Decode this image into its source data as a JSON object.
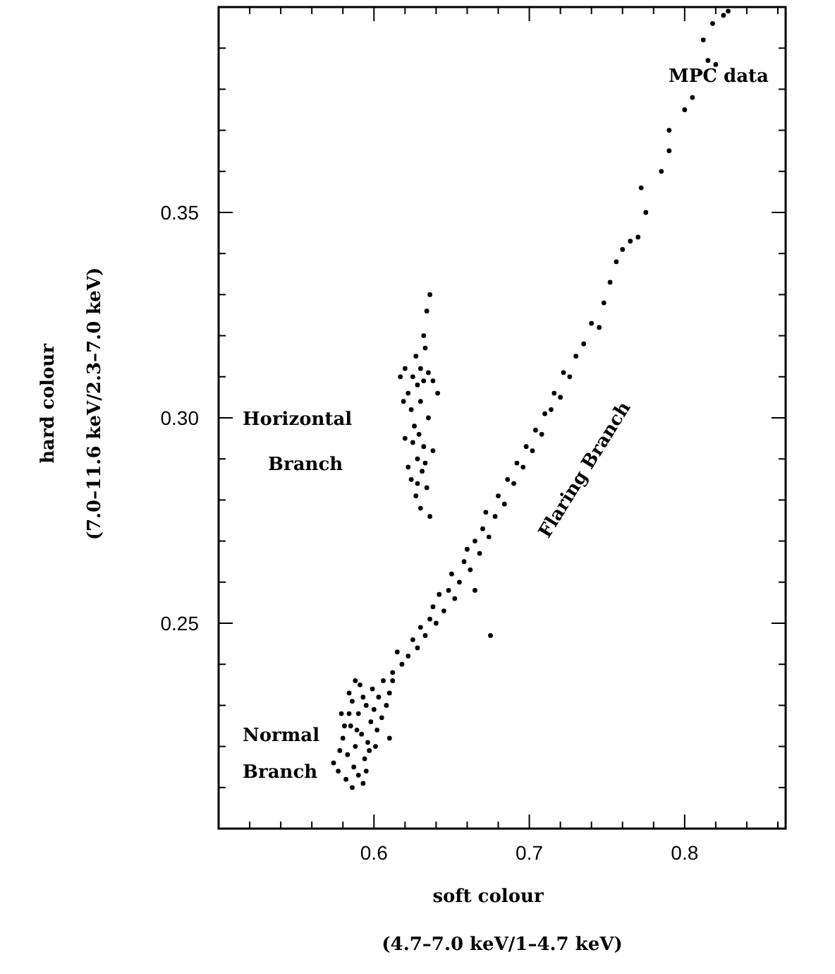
{
  "chart_data": {
    "type": "scatter",
    "xlabel": "soft colour\n(4.7–7.0 keV/1–4.7 keV)",
    "ylabel": "hard colour\n(7.0–11.6 keV/2.3–7.0 keV)",
    "xlim": [
      0.5,
      0.865
    ],
    "ylim": [
      0.2,
      0.4
    ],
    "xticks": [
      {
        "value": 0.52,
        "label": null
      },
      {
        "value": 0.54,
        "label": null
      },
      {
        "value": 0.56,
        "label": null
      },
      {
        "value": 0.58,
        "label": null
      },
      0.6,
      {
        "value": 0.62,
        "label": null
      },
      {
        "value": 0.64,
        "label": null
      },
      {
        "value": 0.66,
        "label": null
      },
      {
        "value": 0.68,
        "label": null
      },
      0.7,
      {
        "value": 0.72,
        "label": null
      },
      {
        "value": 0.74,
        "label": null
      },
      {
        "value": 0.76,
        "label": null
      },
      {
        "value": 0.78,
        "label": null
      },
      0.8,
      {
        "value": 0.82,
        "label": null
      },
      {
        "value": 0.84,
        "label": null
      },
      {
        "value": 0.86,
        "label": null
      }
    ],
    "yticks": [
      {
        "value": 0.21,
        "label": null
      },
      {
        "value": 0.22,
        "label": null
      },
      {
        "value": 0.23,
        "label": null
      },
      {
        "value": 0.24,
        "label": null
      },
      0.25,
      {
        "value": 0.26,
        "label": null
      },
      {
        "value": 0.27,
        "label": null
      },
      {
        "value": 0.28,
        "label": null
      },
      {
        "value": 0.29,
        "label": null
      },
      {
        "value": 0.3,
        "label": "0.30"
      },
      {
        "value": 0.31,
        "label": null
      },
      {
        "value": 0.32,
        "label": null
      },
      {
        "value": 0.33,
        "label": null
      },
      {
        "value": 0.34,
        "label": null
      },
      0.35,
      {
        "value": 0.36,
        "label": null
      },
      {
        "value": 0.37,
        "label": null
      },
      {
        "value": 0.38,
        "label": null
      },
      {
        "value": 0.39,
        "label": null
      }
    ],
    "grid": false,
    "marker": "circle",
    "annotations": [
      "MPC data",
      "Horizontal Branch",
      "Normal Branch",
      "Flaring Branch"
    ],
    "series": [
      {
        "color": "#000000",
        "x": [
          0.585,
          0.59,
          0.588,
          0.592,
          0.583,
          0.595,
          0.58,
          0.587,
          0.593,
          0.598,
          0.578,
          0.59,
          0.596,
          0.6,
          0.584,
          0.589,
          0.586,
          0.603,
          0.605,
          0.582,
          0.577,
          0.594,
          0.591,
          0.599,
          0.608,
          0.574,
          0.597,
          0.581,
          0.602,
          0.61,
          0.588,
          0.593,
          0.586,
          0.606,
          0.612,
          0.579,
          0.595,
          0.601,
          0.584,
          0.61,
          0.612,
          0.618,
          0.615,
          0.622,
          0.625,
          0.628,
          0.63,
          0.633,
          0.636,
          0.64,
          0.638,
          0.645,
          0.642,
          0.648,
          0.652,
          0.65,
          0.655,
          0.658,
          0.662,
          0.66,
          0.665,
          0.668,
          0.67,
          0.674,
          0.672,
          0.678,
          0.68,
          0.684,
          0.686,
          0.69,
          0.692,
          0.696,
          0.698,
          0.702,
          0.704,
          0.708,
          0.71,
          0.714,
          0.716,
          0.72,
          0.722,
          0.726,
          0.73,
          0.735,
          0.74,
          0.745,
          0.748,
          0.752,
          0.756,
          0.76,
          0.765,
          0.77,
          0.775,
          0.772,
          0.785,
          0.79,
          0.79,
          0.8,
          0.805,
          0.81,
          0.815,
          0.82,
          0.812,
          0.818,
          0.825,
          0.828,
          0.675,
          0.665,
          0.625,
          0.628,
          0.63,
          0.622,
          0.632,
          0.627,
          0.635,
          0.62,
          0.63,
          0.624,
          0.633,
          0.638,
          0.617,
          0.629,
          0.632,
          0.626,
          0.635,
          0.628,
          0.631,
          0.624,
          0.634,
          0.627,
          0.63,
          0.636,
          0.622,
          0.638,
          0.625,
          0.632,
          0.634,
          0.636,
          0.619,
          0.641,
          0.628,
          0.633,
          0.62
        ],
        "values": [
          0.225,
          0.228,
          0.22,
          0.223,
          0.218,
          0.23,
          0.222,
          0.215,
          0.232,
          0.226,
          0.219,
          0.213,
          0.221,
          0.229,
          0.228,
          0.224,
          0.231,
          0.232,
          0.227,
          0.212,
          0.214,
          0.217,
          0.235,
          0.234,
          0.23,
          0.216,
          0.219,
          0.225,
          0.224,
          0.233,
          0.236,
          0.211,
          0.21,
          0.236,
          0.236,
          0.228,
          0.214,
          0.22,
          0.233,
          0.222,
          0.238,
          0.24,
          0.243,
          0.242,
          0.246,
          0.244,
          0.249,
          0.247,
          0.251,
          0.25,
          0.254,
          0.253,
          0.257,
          0.258,
          0.256,
          0.262,
          0.26,
          0.265,
          0.263,
          0.268,
          0.27,
          0.267,
          0.273,
          0.271,
          0.277,
          0.276,
          0.281,
          0.279,
          0.285,
          0.284,
          0.289,
          0.288,
          0.293,
          0.292,
          0.297,
          0.296,
          0.301,
          0.302,
          0.306,
          0.305,
          0.311,
          0.31,
          0.315,
          0.318,
          0.323,
          0.322,
          0.328,
          0.333,
          0.338,
          0.341,
          0.343,
          0.344,
          0.35,
          0.356,
          0.36,
          0.365,
          0.37,
          0.375,
          0.378,
          0.384,
          0.387,
          0.386,
          0.392,
          0.396,
          0.398,
          0.399,
          0.247,
          0.258,
          0.31,
          0.308,
          0.312,
          0.306,
          0.309,
          0.315,
          0.311,
          0.312,
          0.304,
          0.302,
          0.317,
          0.309,
          0.31,
          0.296,
          0.293,
          0.298,
          0.3,
          0.29,
          0.287,
          0.285,
          0.283,
          0.281,
          0.278,
          0.276,
          0.288,
          0.292,
          0.294,
          0.32,
          0.326,
          0.33,
          0.304,
          0.306,
          0.284,
          0.289,
          0.295
        ]
      }
    ]
  }
}
